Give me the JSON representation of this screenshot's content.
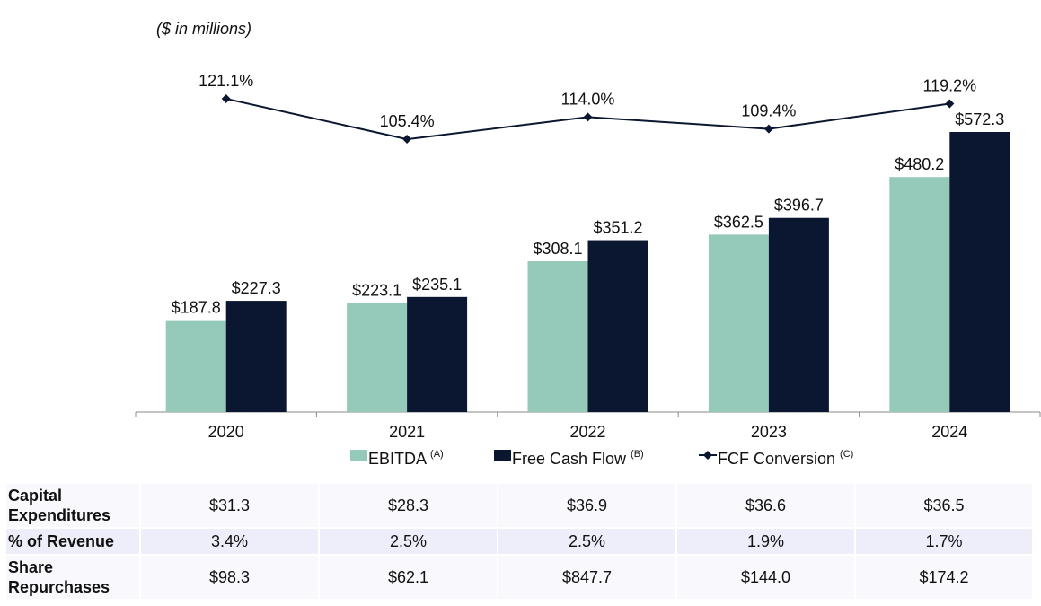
{
  "units_note": "($ in millions)",
  "chart_data": {
    "type": "bar",
    "categories": [
      "2020",
      "2021",
      "2022",
      "2023",
      "2024"
    ],
    "series": [
      {
        "name": "EBITDA",
        "superscript": "(A)",
        "color": "#95c9ba",
        "values": [
          187.8,
          223.1,
          308.1,
          362.5,
          480.2
        ],
        "labels": [
          "$187.8",
          "$223.1",
          "$308.1",
          "$362.5",
          "$480.2"
        ]
      },
      {
        "name": "Free Cash Flow",
        "superscript": "(B)",
        "color": "#0b1730",
        "values": [
          227.3,
          235.1,
          351.2,
          396.7,
          572.3
        ],
        "labels": [
          "$227.3",
          "$235.1",
          "$351.2",
          "$396.7",
          "$572.3"
        ]
      }
    ],
    "line_series": {
      "name": "FCF Conversion",
      "superscript": "(C)",
      "type": "line",
      "marker": "diamond",
      "color": "#0b1730",
      "values": [
        121.1,
        105.4,
        114.0,
        109.4,
        119.2
      ],
      "labels": [
        "121.1%",
        "105.4%",
        "114.0%",
        "109.4%",
        "119.2%"
      ]
    },
    "ylim": [
      0,
      600
    ],
    "legend": "bottom"
  },
  "table": {
    "rows": [
      {
        "label": "Capital Expenditures",
        "values": [
          "$31.3",
          "$28.3",
          "$36.9",
          "$36.6",
          "$36.5"
        ]
      },
      {
        "label": "% of Revenue",
        "values": [
          "3.4%",
          "2.5%",
          "2.5%",
          "1.9%",
          "1.7%"
        ]
      },
      {
        "label": "Share Repurchases",
        "values": [
          "$98.3",
          "$62.1",
          "$847.7",
          "$144.0",
          "$174.2"
        ]
      }
    ]
  }
}
